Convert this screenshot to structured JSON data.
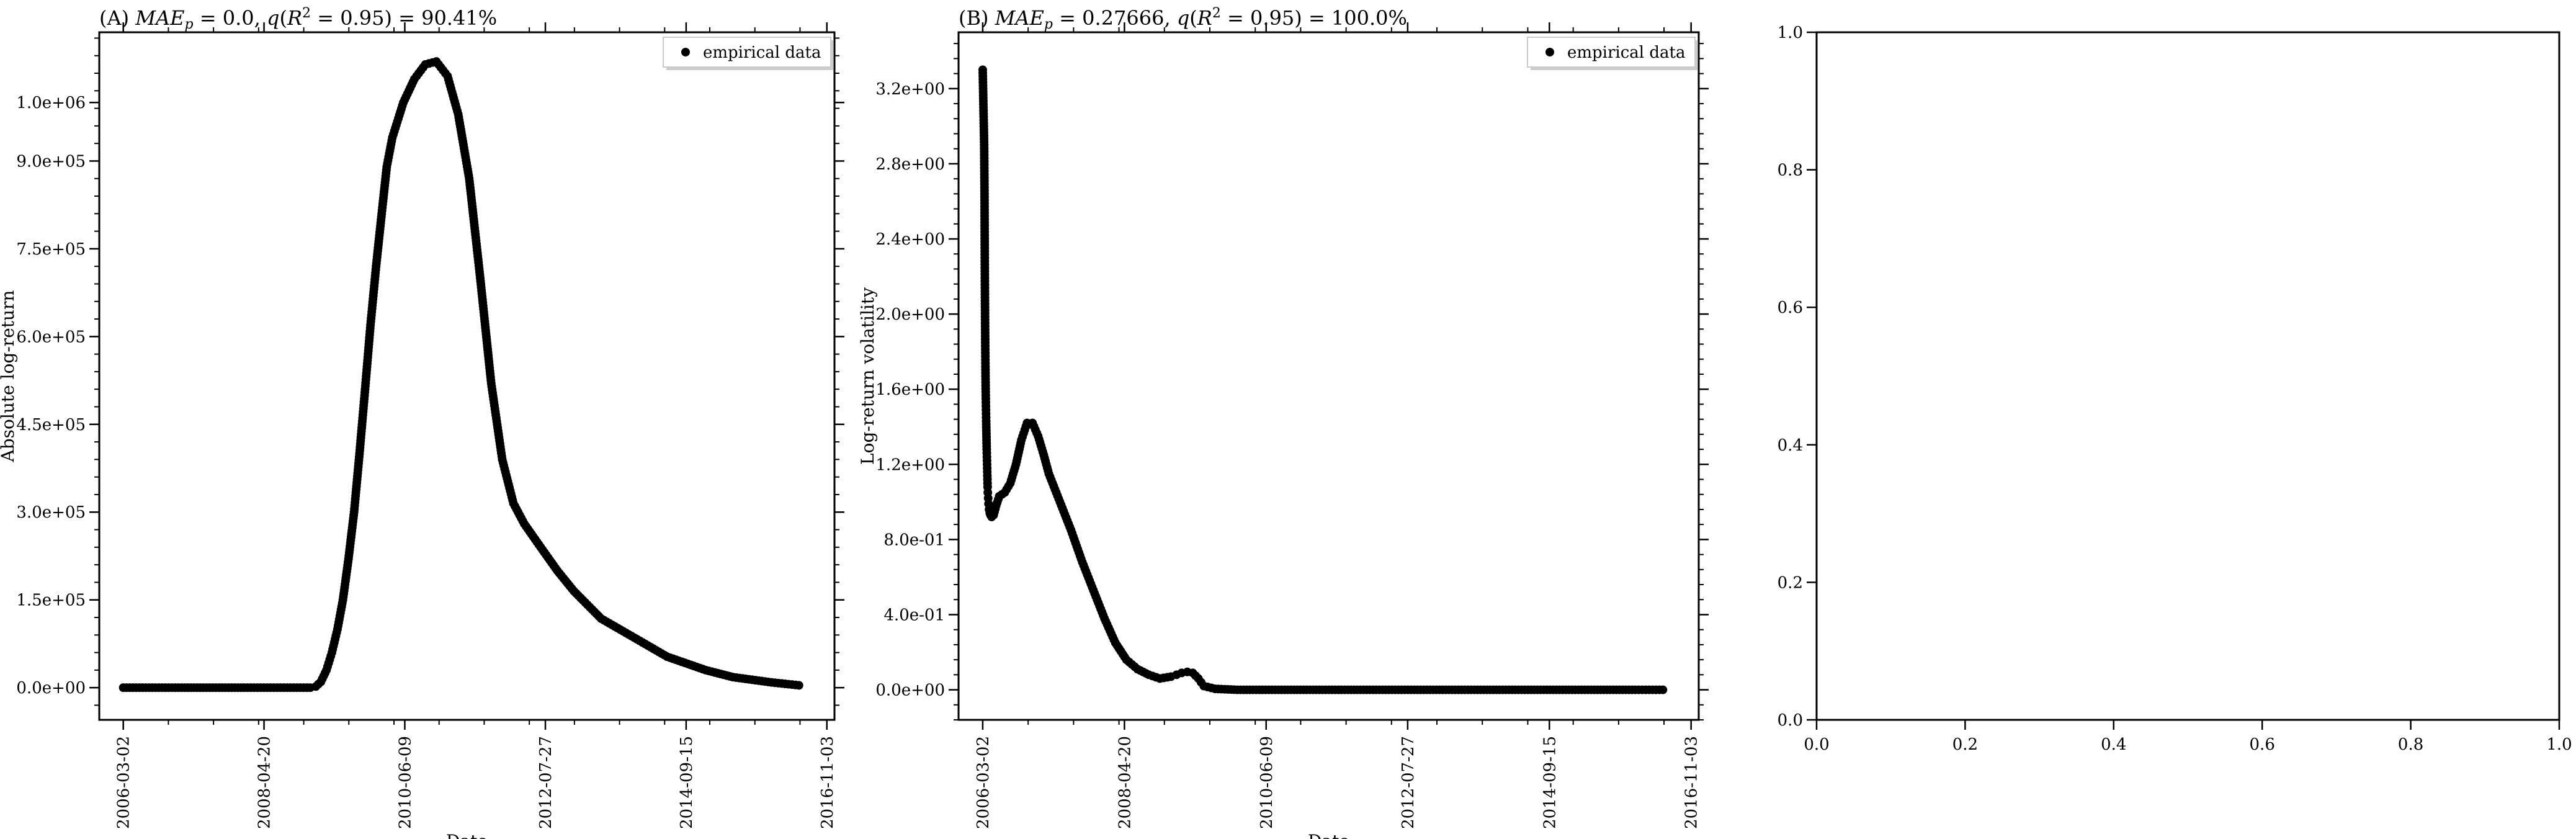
{
  "chart_data": [
    {
      "type": "scatter",
      "title_prefix": "(A) ",
      "title": "MAE_p = 0.0, q(R^2 = 0.95) = 90.41%",
      "xlabel": "Date",
      "ylabel": "Absolute log-return",
      "x_ticks": [
        "2006-03-02",
        "2008-04-20",
        "2010-06-09",
        "2012-07-27",
        "2014-09-15",
        "2016-11-03"
      ],
      "y_ticks": [
        "0.0e+00",
        "1.5e+05",
        "3.0e+05",
        "4.5e+05",
        "6.0e+05",
        "7.5e+05",
        "9.0e+05",
        "1.0e+06"
      ],
      "ylim": [
        -55000,
        1120000
      ],
      "xlim": [
        "2005-10-20",
        "2016-12-15"
      ],
      "legend": {
        "label": "empirical data",
        "position": "top-right"
      },
      "series": [
        {
          "name": "empirical data",
          "color": "#000000",
          "points": [
            [
              "2006-03-02",
              0
            ],
            [
              "2007-01-01",
              0
            ],
            [
              "2008-01-01",
              0
            ],
            [
              "2008-10-01",
              0
            ],
            [
              "2009-01-01",
              0
            ],
            [
              "2009-02-01",
              2000
            ],
            [
              "2009-03-01",
              10000
            ],
            [
              "2009-04-01",
              30000
            ],
            [
              "2009-05-01",
              60000
            ],
            [
              "2009-06-01",
              100000
            ],
            [
              "2009-07-01",
              150000
            ],
            [
              "2009-08-01",
              220000
            ],
            [
              "2009-09-01",
              300000
            ],
            [
              "2009-10-01",
              400000
            ],
            [
              "2009-11-01",
              510000
            ],
            [
              "2009-12-01",
              620000
            ],
            [
              "2010-01-01",
              720000
            ],
            [
              "2010-02-01",
              810000
            ],
            [
              "2010-03-01",
              890000
            ],
            [
              "2010-04-01",
              940000
            ],
            [
              "2010-06-01",
              1000000
            ],
            [
              "2010-08-01",
              1040000
            ],
            [
              "2010-10-01",
              1065000
            ],
            [
              "2010-12-01",
              1070000
            ],
            [
              "2011-02-01",
              1045000
            ],
            [
              "2011-04-01",
              980000
            ],
            [
              "2011-06-01",
              870000
            ],
            [
              "2011-08-01",
              700000
            ],
            [
              "2011-10-01",
              520000
            ],
            [
              "2011-12-01",
              390000
            ],
            [
              "2012-02-01",
              315000
            ],
            [
              "2012-04-01",
              280000
            ],
            [
              "2012-07-01",
              240000
            ],
            [
              "2012-10-01",
              200000
            ],
            [
              "2013-01-01",
              165000
            ],
            [
              "2013-06-01",
              118000
            ],
            [
              "2014-01-01",
              80000
            ],
            [
              "2014-06-01",
              53000
            ],
            [
              "2015-01-01",
              30000
            ],
            [
              "2015-06-01",
              18000
            ],
            [
              "2016-01-01",
              9000
            ],
            [
              "2016-06-01",
              4000
            ]
          ]
        }
      ]
    },
    {
      "type": "scatter",
      "title_prefix": "(B) ",
      "title": "MAE_p = 0.27666, q(R^2 = 0.95) = 100.0%",
      "xlabel": "Date",
      "ylabel": "Log-return volatility",
      "x_ticks": [
        "2006-03-02",
        "2008-04-20",
        "2010-06-09",
        "2012-07-27",
        "2014-09-15",
        "2016-11-03"
      ],
      "y_ticks": [
        "0.0e+00",
        "4.0e-01",
        "8.0e-01",
        "1.2e+00",
        "1.6e+00",
        "2.0e+00",
        "2.4e+00",
        "2.8e+00",
        "3.2e+00"
      ],
      "ylim": [
        -0.16,
        3.5
      ],
      "xlim": [
        "2005-10-20",
        "2016-12-15"
      ],
      "legend": {
        "label": "empirical data",
        "position": "top-right"
      },
      "series": [
        {
          "name": "empirical data",
          "color": "#000000",
          "points": [
            [
              "2006-03-02",
              3.3
            ],
            [
              "2006-03-03",
              3.25
            ],
            [
              "2006-03-04",
              3.2
            ],
            [
              "2006-03-05",
              3.15
            ],
            [
              "2006-03-06",
              3.1
            ],
            [
              "2006-03-07",
              3.05
            ],
            [
              "2006-03-08",
              3.0
            ],
            [
              "2006-03-09",
              2.95
            ],
            [
              "2006-03-10",
              2.9
            ],
            [
              "2006-03-12",
              2.64
            ],
            [
              "2006-03-13",
              2.37
            ],
            [
              "2006-03-14",
              2.14
            ],
            [
              "2006-03-15",
              1.97
            ],
            [
              "2006-03-16",
              1.83
            ],
            [
              "2006-03-17",
              1.72
            ],
            [
              "2006-03-18",
              1.62
            ],
            [
              "2006-03-19",
              1.55
            ],
            [
              "2006-03-20",
              1.49
            ],
            [
              "2006-03-21",
              1.43
            ],
            [
              "2006-03-22",
              1.38
            ],
            [
              "2006-03-23",
              1.33
            ],
            [
              "2006-03-24",
              1.28
            ],
            [
              "2006-03-25",
              1.24
            ],
            [
              "2006-03-26",
              1.2
            ],
            [
              "2006-03-27",
              1.16
            ],
            [
              "2006-03-28",
              1.12
            ],
            [
              "2006-03-29",
              1.08
            ],
            [
              "2006-03-30",
              1.05
            ],
            [
              "2006-04-01",
              1.02
            ],
            [
              "2006-04-03",
              0.99
            ],
            [
              "2006-04-06",
              0.96
            ],
            [
              "2006-04-10",
              0.94
            ],
            [
              "2006-04-14",
              0.93
            ],
            [
              "2006-04-20",
              0.92
            ],
            [
              "2006-05-01",
              0.93
            ],
            [
              "2006-05-15",
              0.98
            ],
            [
              "2006-06-01",
              1.03
            ],
            [
              "2006-07-01",
              1.05
            ],
            [
              "2006-08-01",
              1.1
            ],
            [
              "2006-09-01",
              1.2
            ],
            [
              "2006-10-01",
              1.33
            ],
            [
              "2006-11-01",
              1.42
            ],
            [
              "2006-12-01",
              1.42
            ],
            [
              "2007-01-01",
              1.35
            ],
            [
              "2007-02-01",
              1.25
            ],
            [
              "2007-03-01",
              1.15
            ],
            [
              "2007-05-01",
              1.0
            ],
            [
              "2007-07-01",
              0.85
            ],
            [
              "2007-09-01",
              0.68
            ],
            [
              "2007-11-01",
              0.53
            ],
            [
              "2008-01-01",
              0.38
            ],
            [
              "2008-03-01",
              0.25
            ],
            [
              "2008-05-01",
              0.16
            ],
            [
              "2008-07-01",
              0.11
            ],
            [
              "2008-09-01",
              0.08
            ],
            [
              "2008-11-01",
              0.06
            ],
            [
              "2009-01-01",
              0.07
            ],
            [
              "2009-02-01",
              0.08
            ],
            [
              "2009-03-01",
              0.09
            ],
            [
              "2009-04-01",
              0.095
            ],
            [
              "2009-05-01",
              0.09
            ],
            [
              "2009-06-01",
              0.06
            ],
            [
              "2009-07-01",
              0.02
            ],
            [
              "2009-09-01",
              0.005
            ],
            [
              "2010-01-01",
              0
            ],
            [
              "2011-01-01",
              0
            ],
            [
              "2012-01-01",
              0
            ],
            [
              "2013-01-01",
              0
            ],
            [
              "2014-01-01",
              0
            ],
            [
              "2015-01-01",
              0
            ],
            [
              "2016-01-01",
              0
            ],
            [
              "2016-06-01",
              0
            ]
          ]
        }
      ]
    },
    {
      "type": "scatter",
      "title": "",
      "xlabel": "",
      "ylabel": "",
      "x_ticks": [
        "0.0",
        "0.2",
        "0.4",
        "0.6",
        "0.8",
        "1.0"
      ],
      "y_ticks": [
        "0.0",
        "0.2",
        "0.4",
        "0.6",
        "0.8",
        "1.0"
      ],
      "xlim": [
        0,
        1
      ],
      "ylim": [
        0,
        1
      ],
      "series": []
    }
  ]
}
